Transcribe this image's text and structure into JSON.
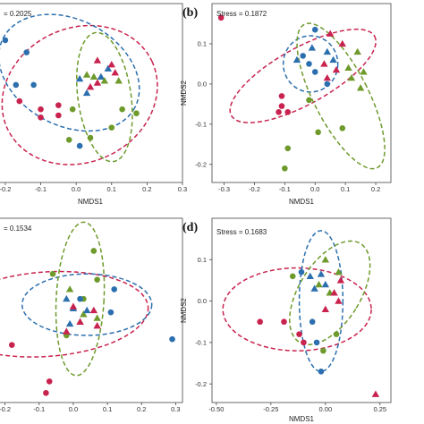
{
  "colors": {
    "red": "#c8234f",
    "blue": "#2c6fae",
    "green": "#6e9a2c",
    "frame": "#444444"
  },
  "chart_data": [
    {
      "id": "a",
      "type": "scatter",
      "panel_letter": "",
      "stress_text": "= 0.2025",
      "xlabel": "NMDS1",
      "ylabel": "",
      "xlim": [
        -0.22,
        0.3
      ],
      "ylim": [
        -0.22,
        0.22
      ],
      "xticks": [
        -0.2,
        -0.1,
        0.0,
        0.1,
        0.2,
        0.3
      ],
      "xtick_labels": [
        "-0.2",
        "-0.1",
        "0.0",
        "0.1",
        "0.2",
        "0.3"
      ],
      "yticks": [],
      "ytick_labels": [],
      "ellipses": [
        {
          "color": "red",
          "cx": 0.01,
          "cy": -0.005,
          "rx": 0.225,
          "ry": 0.165,
          "angle": 25
        },
        {
          "color": "blue",
          "cx": -0.02,
          "cy": 0.05,
          "rx": 0.21,
          "ry": 0.13,
          "angle": -28
        },
        {
          "color": "green",
          "cx": 0.08,
          "cy": -0.01,
          "rx": 0.075,
          "ry": 0.16,
          "angle": 8
        }
      ],
      "points": [
        {
          "color": "blue",
          "shape": "circle",
          "x": -0.2,
          "y": 0.13
        },
        {
          "color": "blue",
          "shape": "circle",
          "x": -0.14,
          "y": 0.1
        },
        {
          "color": "blue",
          "shape": "circle",
          "x": -0.17,
          "y": 0.02
        },
        {
          "color": "blue",
          "shape": "circle",
          "x": -0.12,
          "y": 0.02
        },
        {
          "color": "blue",
          "shape": "circle",
          "x": 0.01,
          "y": -0.13
        },
        {
          "color": "blue",
          "shape": "triangle",
          "x": 0.01,
          "y": 0.035
        },
        {
          "color": "blue",
          "shape": "triangle",
          "x": 0.07,
          "y": 0.04
        },
        {
          "color": "blue",
          "shape": "triangle",
          "x": 0.09,
          "y": 0.06
        },
        {
          "color": "blue",
          "shape": "triangle",
          "x": 0.03,
          "y": 0.0
        },
        {
          "color": "red",
          "shape": "circle",
          "x": -0.16,
          "y": -0.02
        },
        {
          "color": "red",
          "shape": "circle",
          "x": -0.1,
          "y": -0.04
        },
        {
          "color": "red",
          "shape": "circle",
          "x": -0.05,
          "y": -0.03
        },
        {
          "color": "red",
          "shape": "circle",
          "x": -0.1,
          "y": -0.06
        },
        {
          "color": "red",
          "shape": "circle",
          "x": -0.05,
          "y": -0.055
        },
        {
          "color": "red",
          "shape": "triangle",
          "x": 0.06,
          "y": 0.08
        },
        {
          "color": "red",
          "shape": "triangle",
          "x": 0.1,
          "y": 0.07
        },
        {
          "color": "red",
          "shape": "triangle",
          "x": 0.11,
          "y": 0.05
        },
        {
          "color": "red",
          "shape": "triangle",
          "x": 0.06,
          "y": 0.025
        },
        {
          "color": "red",
          "shape": "triangle",
          "x": 0.04,
          "y": 0.015
        },
        {
          "color": "green",
          "shape": "triangle",
          "x": 0.03,
          "y": 0.045
        },
        {
          "color": "green",
          "shape": "triangle",
          "x": 0.05,
          "y": 0.04
        },
        {
          "color": "green",
          "shape": "triangle",
          "x": 0.08,
          "y": 0.03
        },
        {
          "color": "green",
          "shape": "triangle",
          "x": 0.12,
          "y": 0.03
        },
        {
          "color": "green",
          "shape": "circle",
          "x": -0.01,
          "y": -0.04
        },
        {
          "color": "green",
          "shape": "circle",
          "x": 0.13,
          "y": -0.04
        },
        {
          "color": "green",
          "shape": "circle",
          "x": 0.17,
          "y": -0.05
        },
        {
          "color": "green",
          "shape": "circle",
          "x": 0.1,
          "y": -0.085
        },
        {
          "color": "green",
          "shape": "circle",
          "x": 0.04,
          "y": -0.11
        },
        {
          "color": "green",
          "shape": "circle",
          "x": -0.02,
          "y": -0.115
        }
      ]
    },
    {
      "id": "b",
      "type": "scatter",
      "panel_letter": "(b)",
      "stress_text": "Stress = 0.1872",
      "xlabel": "NMDS1",
      "ylabel": "NMDS2",
      "xlim": [
        -0.34,
        0.25
      ],
      "ylim": [
        -0.245,
        0.2
      ],
      "xticks": [
        -0.3,
        -0.2,
        -0.1,
        0.0,
        0.1,
        0.2
      ],
      "xtick_labels": [
        "-0.3",
        "-0.2",
        "-0.1",
        "0.0",
        "0.1",
        "0.2"
      ],
      "yticks": [
        0.1,
        0.0,
        -0.1,
        -0.2
      ],
      "ytick_labels": [
        "0.1",
        "0.0",
        "-0.1",
        "-0.2"
      ],
      "ellipses": [
        {
          "color": "red",
          "cx": -0.04,
          "cy": 0.02,
          "rx": 0.27,
          "ry": 0.07,
          "angle": 29
        },
        {
          "color": "blue",
          "cx": -0.015,
          "cy": 0.05,
          "rx": 0.09,
          "ry": 0.07,
          "angle": 0
        },
        {
          "color": "green",
          "cx": 0.085,
          "cy": -0.03,
          "rx": 0.09,
          "ry": 0.2,
          "angle": 27
        }
      ],
      "points": [
        {
          "color": "red",
          "shape": "circle",
          "x": -0.31,
          "y": 0.165
        },
        {
          "color": "red",
          "shape": "circle",
          "x": -0.11,
          "y": -0.03
        },
        {
          "color": "red",
          "shape": "circle",
          "x": -0.11,
          "y": -0.055
        },
        {
          "color": "red",
          "shape": "circle",
          "x": -0.09,
          "y": -0.07
        },
        {
          "color": "red",
          "shape": "circle",
          "x": -0.12,
          "y": -0.07
        },
        {
          "color": "red",
          "shape": "triangle",
          "x": 0.05,
          "y": 0.125
        },
        {
          "color": "red",
          "shape": "triangle",
          "x": 0.09,
          "y": 0.1
        },
        {
          "color": "red",
          "shape": "triangle",
          "x": 0.03,
          "y": 0.05
        },
        {
          "color": "red",
          "shape": "triangle",
          "x": 0.07,
          "y": 0.035
        },
        {
          "color": "red",
          "shape": "triangle",
          "x": 0.04,
          "y": 0.015
        },
        {
          "color": "blue",
          "shape": "circle",
          "x": 0.0,
          "y": 0.135
        },
        {
          "color": "blue",
          "shape": "circle",
          "x": -0.04,
          "y": 0.07
        },
        {
          "color": "blue",
          "shape": "circle",
          "x": -0.02,
          "y": 0.05
        },
        {
          "color": "blue",
          "shape": "circle",
          "x": 0.0,
          "y": 0.03
        },
        {
          "color": "blue",
          "shape": "circle",
          "x": 0.04,
          "y": 0.0
        },
        {
          "color": "blue",
          "shape": "triangle",
          "x": -0.01,
          "y": 0.09
        },
        {
          "color": "blue",
          "shape": "triangle",
          "x": 0.04,
          "y": 0.08
        },
        {
          "color": "blue",
          "shape": "triangle",
          "x": -0.06,
          "y": 0.06
        },
        {
          "color": "blue",
          "shape": "triangle",
          "x": 0.06,
          "y": 0.06
        },
        {
          "color": "green",
          "shape": "triangle",
          "x": 0.14,
          "y": 0.08
        },
        {
          "color": "green",
          "shape": "triangle",
          "x": 0.11,
          "y": 0.04
        },
        {
          "color": "green",
          "shape": "triangle",
          "x": 0.16,
          "y": 0.03
        },
        {
          "color": "green",
          "shape": "triangle",
          "x": 0.12,
          "y": 0.015
        },
        {
          "color": "green",
          "shape": "triangle",
          "x": 0.15,
          "y": -0.01
        },
        {
          "color": "green",
          "shape": "circle",
          "x": -0.02,
          "y": -0.04
        },
        {
          "color": "green",
          "shape": "circle",
          "x": 0.01,
          "y": -0.12
        },
        {
          "color": "green",
          "shape": "circle",
          "x": 0.09,
          "y": -0.11
        },
        {
          "color": "green",
          "shape": "circle",
          "x": -0.1,
          "y": -0.21
        },
        {
          "color": "green",
          "shape": "circle",
          "x": -0.09,
          "y": -0.16
        }
      ]
    },
    {
      "id": "c",
      "type": "scatter",
      "panel_letter": "",
      "stress_text": "= 0.1534",
      "xlabel": "",
      "ylabel": "",
      "xlim": [
        -0.22,
        0.32
      ],
      "ylim": [
        -0.25,
        0.23
      ],
      "xticks": [
        -0.2,
        -0.1,
        0.0,
        0.1,
        0.2,
        0.3
      ],
      "xtick_labels": [
        "-0.2",
        "-0.1",
        "0.0",
        "0.1",
        "0.2",
        "0.3"
      ],
      "yticks": [],
      "ytick_labels": [],
      "ellipses": [
        {
          "color": "red",
          "cx": -0.08,
          "cy": -0.02,
          "rx": 0.3,
          "ry": 0.11,
          "angle": 4
        },
        {
          "color": "blue",
          "cx": 0.04,
          "cy": 0.005,
          "rx": 0.19,
          "ry": 0.08,
          "angle": 0
        },
        {
          "color": "green",
          "cx": 0.02,
          "cy": 0.02,
          "rx": 0.07,
          "ry": 0.2,
          "angle": -3
        }
      ],
      "points": [
        {
          "color": "green",
          "shape": "circle",
          "x": 0.06,
          "y": 0.145
        },
        {
          "color": "green",
          "shape": "circle",
          "x": -0.06,
          "y": 0.085
        },
        {
          "color": "green",
          "shape": "circle",
          "x": 0.07,
          "y": 0.07
        },
        {
          "color": "green",
          "shape": "circle",
          "x": 0.03,
          "y": 0.02
        },
        {
          "color": "green",
          "shape": "triangle",
          "x": -0.01,
          "y": 0.045
        },
        {
          "color": "green",
          "shape": "triangle",
          "x": 0.02,
          "y": -0.04
        },
        {
          "color": "green",
          "shape": "triangle",
          "x": 0.03,
          "y": -0.02
        },
        {
          "color": "green",
          "shape": "triangle",
          "x": 0.07,
          "y": -0.03
        },
        {
          "color": "green",
          "shape": "circle",
          "x": -0.02,
          "y": -0.075
        },
        {
          "color": "blue",
          "shape": "circle",
          "x": 0.12,
          "y": 0.045
        },
        {
          "color": "blue",
          "shape": "circle",
          "x": 0.02,
          "y": 0.02
        },
        {
          "color": "blue",
          "shape": "circle",
          "x": 0.11,
          "y": -0.015
        },
        {
          "color": "blue",
          "shape": "circle",
          "x": 0.29,
          "y": -0.085
        },
        {
          "color": "blue",
          "shape": "triangle",
          "x": -0.02,
          "y": 0.02
        },
        {
          "color": "blue",
          "shape": "triangle",
          "x": 0.0,
          "y": -0.005
        },
        {
          "color": "blue",
          "shape": "triangle",
          "x": 0.04,
          "y": -0.01
        },
        {
          "color": "blue",
          "shape": "triangle",
          "x": -0.01,
          "y": -0.045
        },
        {
          "color": "red",
          "shape": "circle",
          "x": -0.18,
          "y": -0.1
        },
        {
          "color": "red",
          "shape": "circle",
          "x": -0.07,
          "y": -0.195
        },
        {
          "color": "red",
          "shape": "circle",
          "x": -0.08,
          "y": -0.225
        },
        {
          "color": "red",
          "shape": "triangle",
          "x": 0.0,
          "y": 0.0
        },
        {
          "color": "red",
          "shape": "triangle",
          "x": 0.02,
          "y": -0.04
        },
        {
          "color": "red",
          "shape": "triangle",
          "x": 0.06,
          "y": -0.01
        },
        {
          "color": "red",
          "shape": "triangle",
          "x": 0.07,
          "y": -0.05
        },
        {
          "color": "red",
          "shape": "triangle",
          "x": -0.02,
          "y": -0.065
        }
      ]
    },
    {
      "id": "d",
      "type": "scatter",
      "panel_letter": "(d)",
      "stress_text": "Stress = 0.1683",
      "xlabel": "NMDS1",
      "ylabel": "NMDS2",
      "xlim": [
        -0.52,
        0.3
      ],
      "ylim": [
        -0.245,
        0.2
      ],
      "xticks": [
        -0.5,
        -0.25,
        0.0,
        0.25
      ],
      "xtick_labels": [
        "-0.50",
        "-0.25",
        "0.00",
        "0.25"
      ],
      "yticks": [
        0.1,
        0.0,
        -0.1,
        -0.2
      ],
      "ytick_labels": [
        "0.1",
        "0.0",
        "-0.1",
        "-0.2"
      ],
      "ellipses": [
        {
          "color": "red",
          "cx": -0.13,
          "cy": -0.02,
          "rx": 0.34,
          "ry": 0.1,
          "angle": 0
        },
        {
          "color": "blue",
          "cx": -0.02,
          "cy": 0.0,
          "rx": 0.1,
          "ry": 0.17,
          "angle": 0
        },
        {
          "color": "green",
          "cx": 0.02,
          "cy": 0.02,
          "rx": 0.14,
          "ry": 0.14,
          "angle": -32
        }
      ],
      "points": [
        {
          "color": "green",
          "shape": "triangle",
          "x": 0.0,
          "y": 0.1
        },
        {
          "color": "green",
          "shape": "triangle",
          "x": 0.06,
          "y": 0.07
        },
        {
          "color": "green",
          "shape": "triangle",
          "x": -0.03,
          "y": 0.04
        },
        {
          "color": "green",
          "shape": "triangle",
          "x": 0.02,
          "y": 0.02
        },
        {
          "color": "green",
          "shape": "circle",
          "x": -0.15,
          "y": 0.06
        },
        {
          "color": "green",
          "shape": "circle",
          "x": 0.05,
          "y": -0.08
        },
        {
          "color": "green",
          "shape": "circle",
          "x": -0.01,
          "y": -0.12
        },
        {
          "color": "blue",
          "shape": "triangle",
          "x": -0.07,
          "y": 0.06
        },
        {
          "color": "blue",
          "shape": "triangle",
          "x": -0.05,
          "y": 0.03
        },
        {
          "color": "blue",
          "shape": "triangle",
          "x": 0.0,
          "y": 0.04
        },
        {
          "color": "blue",
          "shape": "triangle",
          "x": -0.02,
          "y": 0.065
        },
        {
          "color": "blue",
          "shape": "circle",
          "x": -0.11,
          "y": 0.07
        },
        {
          "color": "blue",
          "shape": "circle",
          "x": -0.06,
          "y": -0.05
        },
        {
          "color": "blue",
          "shape": "circle",
          "x": -0.04,
          "y": -0.1
        },
        {
          "color": "blue",
          "shape": "circle",
          "x": -0.02,
          "y": -0.17
        },
        {
          "color": "red",
          "shape": "triangle",
          "x": 0.07,
          "y": 0.05
        },
        {
          "color": "red",
          "shape": "triangle",
          "x": 0.04,
          "y": 0.02
        },
        {
          "color": "red",
          "shape": "triangle",
          "x": 0.06,
          "y": 0.0
        },
        {
          "color": "red",
          "shape": "triangle",
          "x": 0.0,
          "y": -0.02
        },
        {
          "color": "red",
          "shape": "triangle",
          "x": 0.23,
          "y": -0.225
        },
        {
          "color": "red",
          "shape": "circle",
          "x": -0.3,
          "y": -0.05
        },
        {
          "color": "red",
          "shape": "circle",
          "x": -0.19,
          "y": -0.05
        },
        {
          "color": "red",
          "shape": "circle",
          "x": -0.12,
          "y": -0.08
        },
        {
          "color": "red",
          "shape": "circle",
          "x": -0.1,
          "y": -0.1
        }
      ]
    }
  ]
}
